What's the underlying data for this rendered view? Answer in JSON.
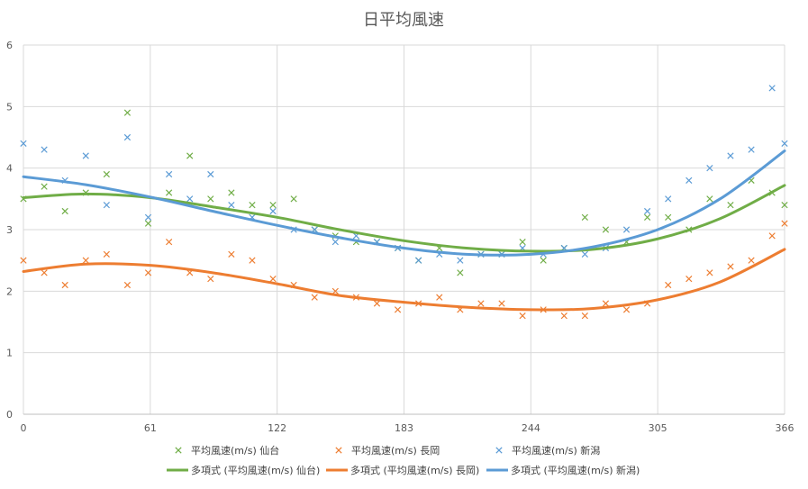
{
  "chart_data": {
    "type": "scatter",
    "title": "日平均風速",
    "xlim": [
      0,
      366
    ],
    "ylim": [
      0,
      6
    ],
    "x_ticks": [
      0,
      61,
      122,
      183,
      244,
      305,
      366
    ],
    "y_ticks": [
      0,
      1,
      2,
      3,
      4,
      5,
      6
    ],
    "grid": true,
    "legend_position": "bottom",
    "series": [
      {
        "name": "平均風速(m/s) 仙台",
        "marker": "x",
        "color": "#70ad47",
        "x": [
          0,
          10,
          20,
          30,
          40,
          50,
          60,
          70,
          80,
          90,
          100,
          110,
          120,
          130,
          140,
          150,
          160,
          170,
          180,
          190,
          200,
          210,
          220,
          230,
          240,
          250,
          260,
          270,
          280,
          290,
          300,
          310,
          320,
          330,
          340,
          350,
          360,
          366
        ],
        "y": [
          3.5,
          3.7,
          3.3,
          3.6,
          3.9,
          4.9,
          3.1,
          3.6,
          4.2,
          3.5,
          3.6,
          3.4,
          3.4,
          3.5,
          3.0,
          2.9,
          2.8,
          2.8,
          2.7,
          2.5,
          2.7,
          2.3,
          2.6,
          2.6,
          2.8,
          2.5,
          2.7,
          3.2,
          3.0,
          2.8,
          3.2,
          3.2,
          3.0,
          3.5,
          3.4,
          3.8,
          3.6,
          3.4
        ]
      },
      {
        "name": "平均風速(m/s) 長岡",
        "marker": "x",
        "color": "#ed7d31",
        "x": [
          0,
          10,
          20,
          30,
          40,
          50,
          60,
          70,
          80,
          90,
          100,
          110,
          120,
          130,
          140,
          150,
          160,
          170,
          180,
          190,
          200,
          210,
          220,
          230,
          240,
          250,
          260,
          270,
          280,
          290,
          300,
          310,
          320,
          330,
          340,
          350,
          360,
          366
        ],
        "y": [
          2.5,
          2.3,
          2.1,
          2.5,
          2.6,
          2.1,
          2.3,
          2.8,
          2.3,
          2.2,
          2.6,
          2.5,
          2.2,
          2.1,
          1.9,
          2.0,
          1.9,
          1.8,
          1.7,
          1.8,
          1.9,
          1.7,
          1.8,
          1.8,
          1.6,
          1.7,
          1.6,
          1.6,
          1.8,
          1.7,
          1.8,
          2.1,
          2.2,
          2.3,
          2.4,
          2.5,
          2.9,
          3.1
        ]
      },
      {
        "name": "平均風速(m/s) 新潟",
        "marker": "x",
        "color": "#5b9bd5",
        "x": [
          0,
          10,
          20,
          30,
          40,
          50,
          60,
          70,
          80,
          90,
          100,
          110,
          120,
          130,
          140,
          150,
          160,
          170,
          180,
          190,
          200,
          210,
          220,
          230,
          240,
          250,
          260,
          270,
          280,
          290,
          300,
          310,
          320,
          330,
          340,
          350,
          360,
          366
        ],
        "y": [
          4.4,
          4.3,
          3.8,
          4.2,
          3.4,
          4.5,
          3.2,
          3.9,
          3.5,
          3.9,
          3.4,
          3.2,
          3.3,
          3.0,
          3.0,
          2.8,
          2.9,
          2.8,
          2.7,
          2.5,
          2.6,
          2.5,
          2.6,
          2.6,
          2.7,
          2.6,
          2.7,
          2.6,
          2.7,
          3.0,
          3.3,
          3.5,
          3.8,
          4.0,
          4.2,
          4.3,
          5.3,
          4.4
        ]
      },
      {
        "name": "多項式 (平均風速(m/s) 仙台)",
        "type": "line",
        "color": "#70ad47",
        "x": [
          0,
          30,
          61,
          91,
          122,
          152,
          183,
          213,
          244,
          274,
          305,
          335,
          366
        ],
        "y": [
          3.52,
          3.58,
          3.52,
          3.37,
          3.2,
          3.0,
          2.82,
          2.7,
          2.65,
          2.68,
          2.85,
          3.18,
          3.72
        ]
      },
      {
        "name": "多項式 (平均風速(m/s) 長岡)",
        "type": "line",
        "color": "#ed7d31",
        "x": [
          0,
          30,
          61,
          91,
          122,
          152,
          183,
          213,
          244,
          274,
          305,
          335,
          366
        ],
        "y": [
          2.32,
          2.44,
          2.42,
          2.3,
          2.12,
          1.93,
          1.82,
          1.74,
          1.7,
          1.72,
          1.86,
          2.15,
          2.68
        ]
      },
      {
        "name": "多項式 (平均風速(m/s) 新潟)",
        "type": "line",
        "color": "#5b9bd5",
        "x": [
          0,
          30,
          61,
          91,
          122,
          152,
          183,
          213,
          244,
          274,
          305,
          335,
          366
        ],
        "y": [
          3.86,
          3.73,
          3.53,
          3.3,
          3.07,
          2.87,
          2.7,
          2.6,
          2.6,
          2.72,
          3.0,
          3.5,
          4.28
        ]
      }
    ]
  }
}
